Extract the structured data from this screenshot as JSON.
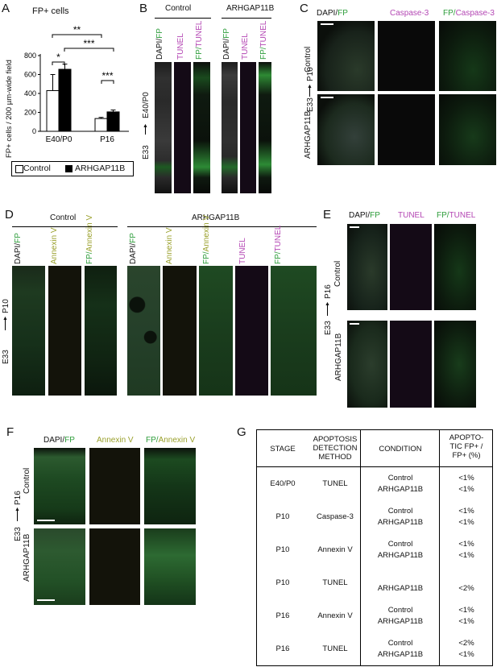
{
  "panels": {
    "A": "A",
    "B": "B",
    "C": "C",
    "D": "D",
    "E": "E",
    "F": "F",
    "G": "G"
  },
  "A": {
    "title": "FP+ cells",
    "ylabel": "FP+ cells / 200 µm-wide field",
    "sig": {
      "s1": "**",
      "s2": "*",
      "s3": "***",
      "s4": "***"
    },
    "legend": {
      "control": "Control",
      "arhgap": "ARHGAP11B"
    },
    "colors": {
      "control": "#ffffff",
      "arhgap": "#000000"
    }
  },
  "chart_data": {
    "type": "bar",
    "categories": [
      "E40/P0",
      "P16"
    ],
    "series": [
      {
        "name": "Control",
        "values": [
          430,
          135
        ],
        "errors": [
          170,
          12
        ]
      },
      {
        "name": "ARHGAP11B",
        "values": [
          655,
          205
        ],
        "errors": [
          55,
          20
        ]
      }
    ],
    "ylim": [
      0,
      800
    ],
    "yticks": [
      0,
      200,
      400,
      600,
      800
    ],
    "ylabel": "FP+ cells / 200 µm-wide field",
    "title": "FP+ cells",
    "legend": "bottom"
  },
  "B": {
    "control": "Control",
    "arhgap": "ARHGAP11B",
    "cols": {
      "dapi": "DAPI/",
      "fp": "FP",
      "tunel": "TUNEL",
      "fp2": "FP/",
      "tunel2": "TUNEL"
    },
    "side": "E33 → E40/P0",
    "side_a": "E33",
    "side_b": "E40/P0"
  },
  "C": {
    "cols": {
      "dapi": "DAPI/",
      "fp": "FP",
      "casp": "Caspase-3",
      "fp2": "FP/",
      "casp2": "Caspase-3"
    },
    "rows": {
      "control": "Control",
      "arhgap": "ARHGAP11B"
    },
    "side_a": "E33",
    "side_b": "P10"
  },
  "D": {
    "control": "Control",
    "arhgap": "ARHGAP11B",
    "cols": {
      "dapi": "DAPI/",
      "fp": "FP",
      "annex": "Annexin V",
      "fp2": "FP/",
      "annex2": "Annexin V",
      "tunel": "TUNEL"
    },
    "side_a": "E33",
    "side_b": "P10"
  },
  "E": {
    "cols": {
      "dapi": "DAPI/",
      "fp": "FP",
      "tunel": "TUNEL",
      "fp2": "FP/",
      "tunel2": "TUNEL"
    },
    "rows": {
      "control": "Control",
      "arhgap": "ARHGAP11B"
    },
    "side_a": "E33",
    "side_b": "P16"
  },
  "F": {
    "cols": {
      "dapi": "DAPI/",
      "fp": "FP",
      "annex": "Annexin V",
      "fp2": "FP/",
      "annex2": "Annexin V"
    },
    "rows": {
      "control": "Control",
      "arhgap": "ARHGAP11B"
    },
    "side_a": "E33",
    "side_b": "P16"
  },
  "G": {
    "headers": {
      "stage": "STAGE",
      "method": "APOPTOSIS DETECTION METHOD",
      "condition": "CONDITION",
      "apop": "APOPTO-TIC FP+ / FP+ (%)"
    },
    "rows": [
      {
        "stage": "E40/P0",
        "method": "TUNEL",
        "c1": "Control",
        "c2": "ARHGAP11B",
        "v1": "<1%",
        "v2": "<1%"
      },
      {
        "stage": "P10",
        "method": "Caspase-3",
        "c1": "Control",
        "c2": "ARHGAP11B",
        "v1": "<1%",
        "v2": "<1%"
      },
      {
        "stage": "P10",
        "method": "Annexin V",
        "c1": "Control",
        "c2": "ARHGAP11B",
        "v1": "<1%",
        "v2": "<1%"
      },
      {
        "stage": "P10",
        "method": "TUNEL",
        "c1": "",
        "c2": "ARHGAP11B",
        "v1": "",
        "v2": "<2%"
      },
      {
        "stage": "P16",
        "method": "Annexin V",
        "c1": "Control",
        "c2": "ARHGAP11B",
        "v1": "<1%",
        "v2": "<1%"
      },
      {
        "stage": "P16",
        "method": "TUNEL",
        "c1": "Control",
        "c2": "ARHGAP11B",
        "v1": "<2%",
        "v2": "<1%"
      }
    ]
  }
}
